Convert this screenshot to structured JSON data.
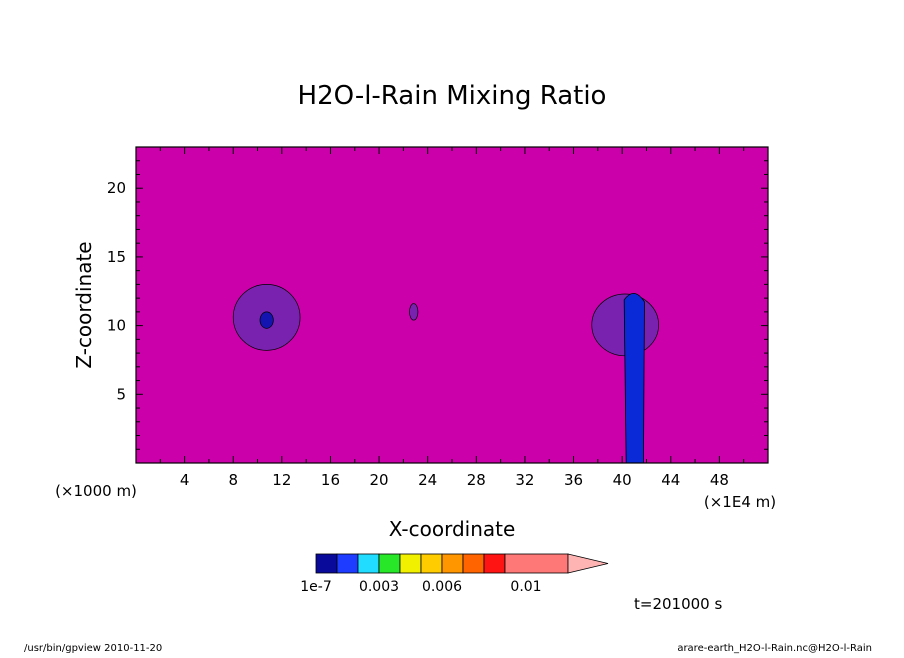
{
  "chart_data": {
    "type": "heatmap",
    "title": "H2O-l-Rain Mixing Ratio",
    "xlabel": "X-coordinate",
    "ylabel": "Z-coordinate",
    "x_unit": "(×1E4 m)",
    "y_unit": "(×1000 m)",
    "xlim": [
      0,
      52
    ],
    "ylim": [
      0,
      23
    ],
    "x_ticks": [
      4,
      8,
      12,
      16,
      20,
      24,
      28,
      32,
      36,
      40,
      44,
      48
    ],
    "y_ticks": [
      5,
      10,
      15,
      20
    ],
    "background_color": "#cc00aa",
    "colorbar": {
      "colors": [
        "#0a0a9a",
        "#1e3cff",
        "#22dcff",
        "#28e628",
        "#f0f000",
        "#ffcc00",
        "#ff9600",
        "#ff6400",
        "#ff1414",
        "#ff7878"
      ],
      "extend_color": "#ffb4b4",
      "tick_labels": [
        "1e-7",
        "0.003",
        "0.006",
        "0.01"
      ]
    },
    "features": [
      {
        "level": "low",
        "color": "#7a22b0",
        "x": [
          8.0,
          13.5
        ],
        "z": [
          8.2,
          13.0
        ]
      },
      {
        "level": "lowest",
        "color": "#1414b0",
        "x": [
          10.2,
          11.3
        ],
        "z": [
          9.8,
          11.0
        ]
      },
      {
        "level": "low",
        "color": "#7a22b0",
        "x": [
          22.5,
          23.2
        ],
        "z": [
          10.4,
          11.6
        ]
      },
      {
        "level": "low",
        "color": "#7a22b0",
        "x": [
          37.5,
          43.0
        ],
        "z": [
          7.8,
          12.3
        ]
      },
      {
        "level": "high",
        "color": "#0a2ad8",
        "x": [
          40.0,
          42.0
        ],
        "z": [
          0,
          12.6
        ]
      }
    ],
    "time_label": "t=201000 s"
  },
  "footer": {
    "left": "/usr/bin/gpview   2010-11-20",
    "right": "arare-earth_H2O-l-Rain.nc@H2O-l-Rain"
  }
}
